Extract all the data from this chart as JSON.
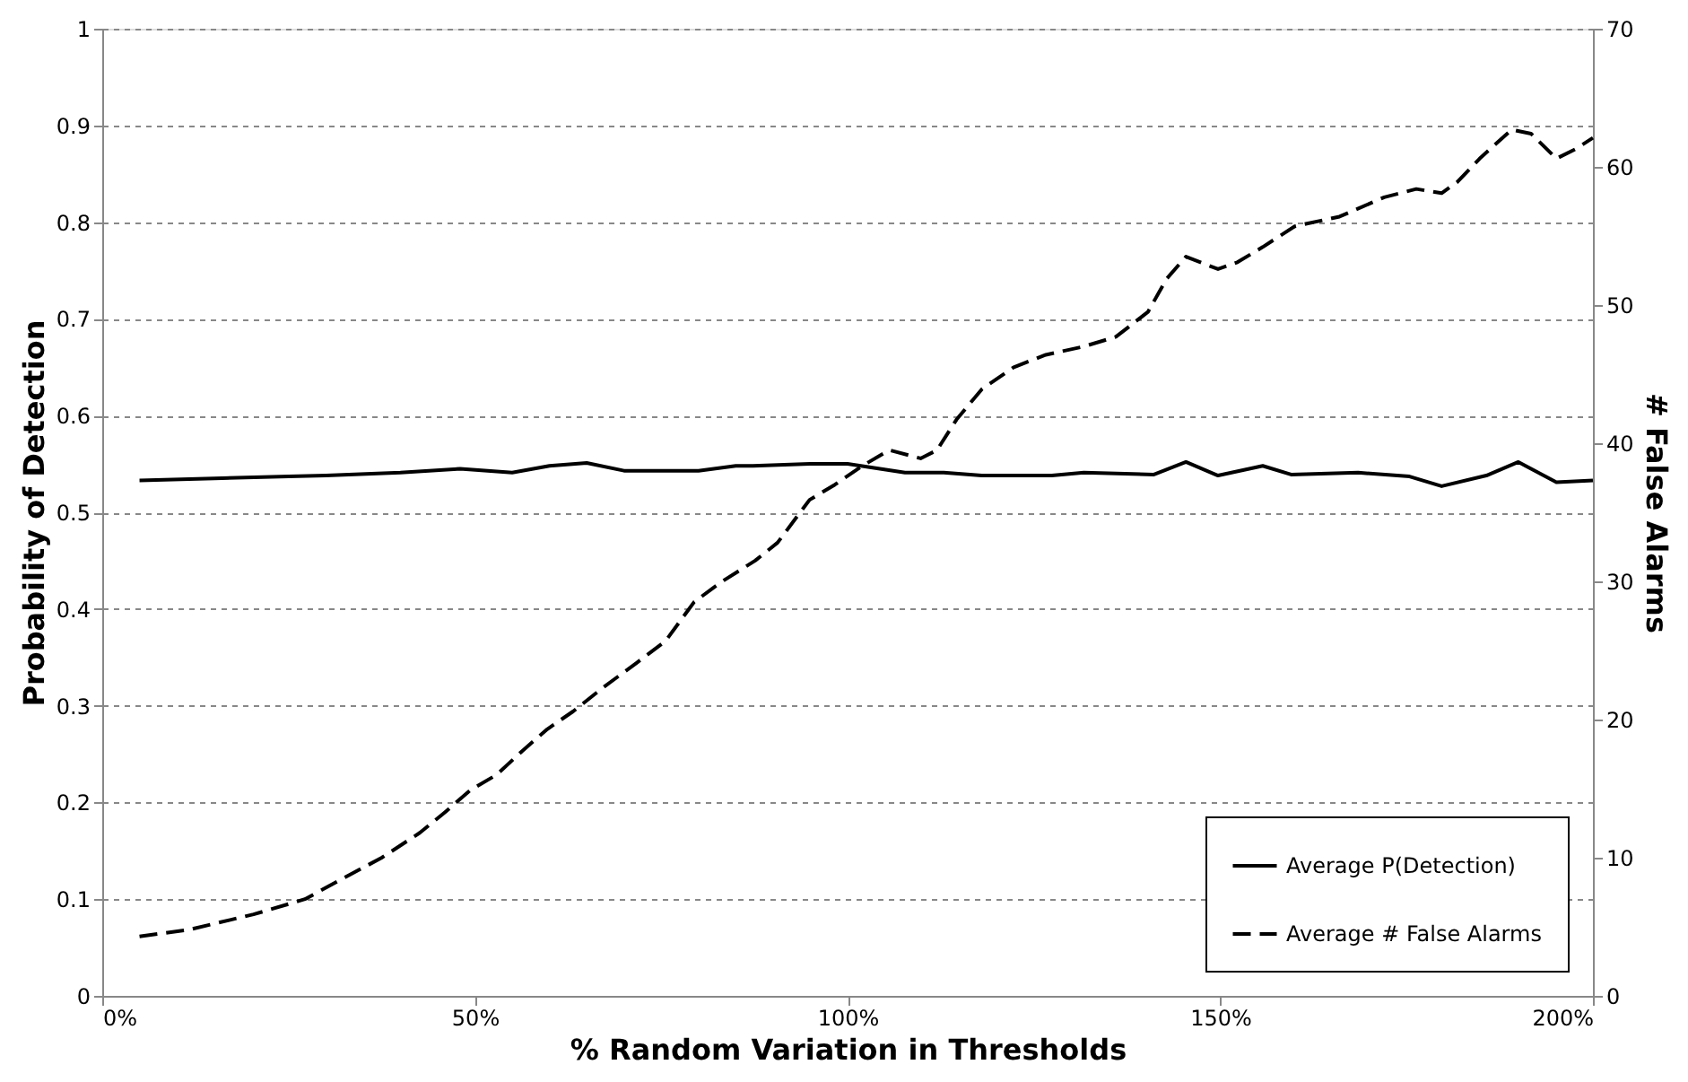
{
  "chart_data": {
    "type": "line",
    "xlabel": "% Random Variation in Thresholds",
    "ylabel": "Probability of Detection",
    "y2label": "# False Alarms",
    "xlim": [
      0,
      200
    ],
    "xticks": [
      {
        "value": 0,
        "label": "0%"
      },
      {
        "value": 50,
        "label": "50%"
      },
      {
        "value": 100,
        "label": "100%"
      },
      {
        "value": 150,
        "label": "150%"
      },
      {
        "value": 200,
        "label": "200%"
      }
    ],
    "ylim": [
      0,
      1
    ],
    "yticks": [
      0,
      0.1,
      0.2,
      0.3,
      0.4,
      0.5,
      0.6,
      0.7,
      0.8,
      0.9,
      1
    ],
    "y2lim": [
      0,
      70
    ],
    "y2ticks": [
      0,
      10,
      20,
      30,
      40,
      50,
      60,
      70
    ],
    "grid": "y",
    "legend": "bottom right",
    "series": [
      {
        "name": "Average P(Detection)",
        "color": "#000000",
        "line_style": "solid",
        "x": [
          5,
          15,
          25,
          30,
          40,
          48,
          55,
          60,
          65,
          70,
          80,
          85,
          87.3,
          94.9,
          100,
          107.7,
          112.9,
          118,
          127.4,
          131.7,
          141.1,
          145.4,
          149.7,
          155.7,
          159.5,
          168.5,
          175.4,
          179.7,
          185.7,
          190,
          195.1,
          200
        ],
        "values": [
          0.533,
          0.535,
          0.537,
          0.538,
          0.541,
          0.545,
          0.541,
          0.548,
          0.551,
          0.543,
          0.543,
          0.548,
          0.548,
          0.55,
          0.55,
          0.541,
          0.541,
          0.538,
          0.538,
          0.541,
          0.539,
          0.552,
          0.538,
          0.548,
          0.539,
          0.541,
          0.537,
          0.527,
          0.538,
          0.552,
          0.531,
          0.533
        ]
      },
      {
        "name": "Average # False Alarms",
        "color": "#000000",
        "line_style": "dashed",
        "axis": "y2",
        "x": [
          5,
          11.7,
          20.3,
          27.2,
          32.3,
          37.5,
          42.6,
          46,
          49.4,
          52.9,
          56.3,
          59.7,
          63.2,
          67.4,
          71.7,
          75.6,
          79.4,
          82.9,
          87.6,
          90.6,
          94.9,
          98.3,
          102.1,
          105.6,
          109.8,
          112,
          114.6,
          118,
          122.3,
          126.6,
          131.7,
          136,
          140.3,
          142.8,
          145.4,
          149.7,
          152.3,
          155.7,
          160,
          166,
          172,
          176.3,
          179.7,
          181.8,
          184.8,
          189.1,
          191.7,
          195.1,
          197.7,
          200
        ],
        "values": [
          4.3,
          4.8,
          5.9,
          7,
          8.5,
          10,
          11.8,
          13.3,
          14.9,
          16,
          17.7,
          19.3,
          20.6,
          22.4,
          24.1,
          25.7,
          28.5,
          29.9,
          31.5,
          32.8,
          35.9,
          37,
          38.4,
          39.5,
          38.9,
          39.5,
          41.7,
          43.9,
          45.5,
          46.4,
          47,
          47.7,
          49.5,
          51.9,
          53.5,
          52.6,
          53.1,
          54.2,
          55.7,
          56.4,
          57.8,
          58.4,
          58.1,
          58.9,
          60.6,
          62.7,
          62.4,
          60.6,
          61.3,
          62.1
        ]
      }
    ]
  }
}
